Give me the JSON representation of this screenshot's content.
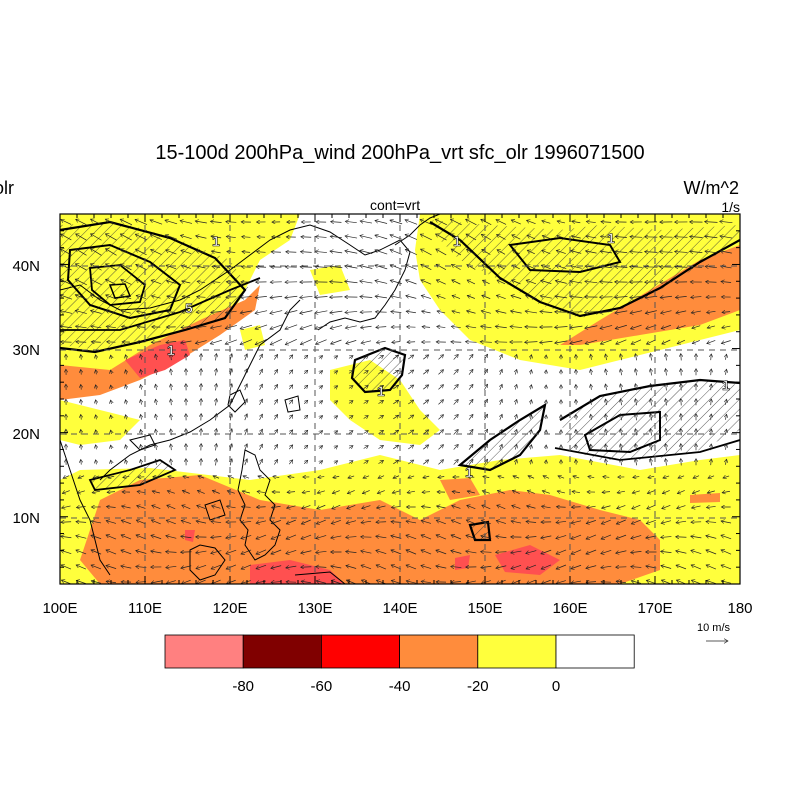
{
  "title": "15-100d 200hPa_wind 200hPa_vrt sfc_olr 1996071500",
  "left_label": "olr",
  "right_label": "W/m^2",
  "center_label": "cont=vrt",
  "right_label_2": "1/s",
  "vector_reference": "10 m/s",
  "contour_labels": [
    "1",
    "5",
    "1",
    "1",
    "1",
    "1",
    "1",
    "1"
  ],
  "colors": {
    "white": "#ffffff",
    "yellow": "#ffff3c",
    "orange": "#ff8c3c",
    "light_red": "#ff5050",
    "red": "#ff0000",
    "dark_red": "#800000",
    "pink": "#ff8080"
  },
  "chart_data": {
    "type": "heatmap",
    "title": "15-100d 200hPa_wind 200hPa_vrt sfc_olr 1996071500",
    "x_ticks": [
      "100E",
      "110E",
      "120E",
      "130E",
      "140E",
      "150E",
      "160E",
      "170E",
      "180"
    ],
    "y_ticks": [
      "10N",
      "20N",
      "30N",
      "40N"
    ],
    "xlim": [
      100,
      180
    ],
    "ylim": [
      2,
      46
    ],
    "colorbar": {
      "labels": [
        "-80",
        "-60",
        "-40",
        "-20",
        "0"
      ],
      "colors": [
        "#ff8080",
        "#800000",
        "#ff0000",
        "#ff8c3c",
        "#ffff3c",
        "#ffffff"
      ]
    }
  }
}
